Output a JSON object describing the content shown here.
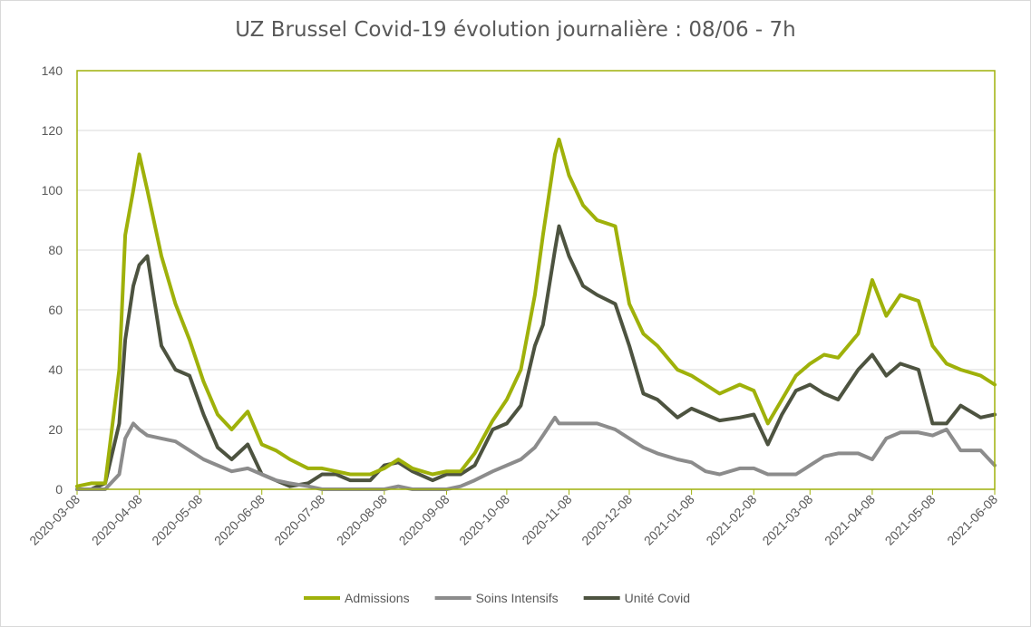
{
  "chart_data": {
    "type": "line",
    "title": "UZ Brussel Covid-19 évolution journalière : 08/06 - 7h",
    "xlabel": "",
    "ylabel": "",
    "ylim": [
      0,
      140
    ],
    "yticks": [
      "0",
      "20",
      "40",
      "60",
      "80",
      "100",
      "120",
      "140"
    ],
    "x_range": [
      "2020-03-08",
      "2021-06-08"
    ],
    "x": [
      "2020-03-08",
      "2020-03-15",
      "2020-03-22",
      "2020-03-29",
      "2020-04-01",
      "2020-04-05",
      "2020-04-08",
      "2020-04-12",
      "2020-04-19",
      "2020-04-26",
      "2020-05-03",
      "2020-05-10",
      "2020-05-17",
      "2020-05-24",
      "2020-06-01",
      "2020-06-08",
      "2020-06-15",
      "2020-06-22",
      "2020-07-01",
      "2020-07-08",
      "2020-07-15",
      "2020-07-22",
      "2020-08-01",
      "2020-08-08",
      "2020-08-15",
      "2020-08-22",
      "2020-09-01",
      "2020-09-08",
      "2020-09-15",
      "2020-09-22",
      "2020-10-01",
      "2020-10-08",
      "2020-10-15",
      "2020-10-22",
      "2020-10-26",
      "2020-11-01",
      "2020-11-03",
      "2020-11-08",
      "2020-11-15",
      "2020-11-22",
      "2020-12-01",
      "2020-12-08",
      "2020-12-15",
      "2020-12-22",
      "2021-01-01",
      "2021-01-08",
      "2021-01-15",
      "2021-01-22",
      "2021-02-01",
      "2021-02-08",
      "2021-02-15",
      "2021-02-22",
      "2021-03-01",
      "2021-03-08",
      "2021-03-15",
      "2021-03-22",
      "2021-04-01",
      "2021-04-08",
      "2021-04-15",
      "2021-04-22",
      "2021-05-01",
      "2021-05-08",
      "2021-05-15",
      "2021-05-22",
      "2021-06-01",
      "2021-06-08"
    ],
    "series": [
      {
        "name": "Admissions",
        "color": "#9fb10a",
        "values": [
          1,
          2,
          2,
          40,
          85,
          100,
          112,
          100,
          78,
          62,
          50,
          36,
          25,
          20,
          26,
          15,
          13,
          10,
          7,
          7,
          6,
          5,
          5,
          7,
          10,
          7,
          5,
          6,
          6,
          12,
          23,
          30,
          40,
          65,
          85,
          112,
          117,
          105,
          95,
          90,
          88,
          62,
          52,
          48,
          40,
          38,
          35,
          32,
          35,
          33,
          22,
          30,
          38,
          42,
          45,
          44,
          52,
          70,
          58,
          65,
          63,
          48,
          42,
          40,
          38,
          35
        ]
      },
      {
        "name": "Soins Intensifs",
        "color": "#8c8c8c",
        "values": [
          0,
          0,
          0,
          5,
          17,
          22,
          20,
          18,
          17,
          16,
          13,
          10,
          8,
          6,
          7,
          5,
          3,
          2,
          1,
          0,
          0,
          0,
          0,
          0,
          1,
          0,
          0,
          0,
          1,
          3,
          6,
          8,
          10,
          14,
          18,
          24,
          22,
          22,
          22,
          22,
          20,
          17,
          14,
          12,
          10,
          9,
          6,
          5,
          7,
          7,
          5,
          5,
          5,
          8,
          11,
          12,
          12,
          10,
          17,
          19,
          19,
          18,
          20,
          13,
          13,
          8
        ]
      },
      {
        "name": "Unité Covid",
        "color": "#4d5340",
        "values": [
          0,
          0,
          2,
          22,
          50,
          68,
          75,
          78,
          48,
          40,
          38,
          25,
          14,
          10,
          15,
          5,
          3,
          1,
          2,
          5,
          5,
          3,
          3,
          8,
          9,
          6,
          3,
          5,
          5,
          8,
          20,
          22,
          28,
          48,
          55,
          80,
          88,
          78,
          68,
          65,
          62,
          48,
          32,
          30,
          24,
          27,
          25,
          23,
          24,
          25,
          15,
          25,
          33,
          35,
          32,
          30,
          40,
          45,
          38,
          42,
          40,
          22,
          22,
          28,
          24,
          25
        ]
      }
    ],
    "x_ticks": [
      "2020-03-08",
      "2020-04-08",
      "2020-05-08",
      "2020-06-08",
      "2020-07-08",
      "2020-08-08",
      "2020-09-08",
      "2020-10-08",
      "2020-11-08",
      "2020-12-08",
      "2021-01-08",
      "2021-02-08",
      "2021-03-08",
      "2021-04-08",
      "2021-05-08",
      "2021-06-08"
    ],
    "grid": true,
    "legend_position": "bottom",
    "plot_border_color": "#9fb10a"
  }
}
